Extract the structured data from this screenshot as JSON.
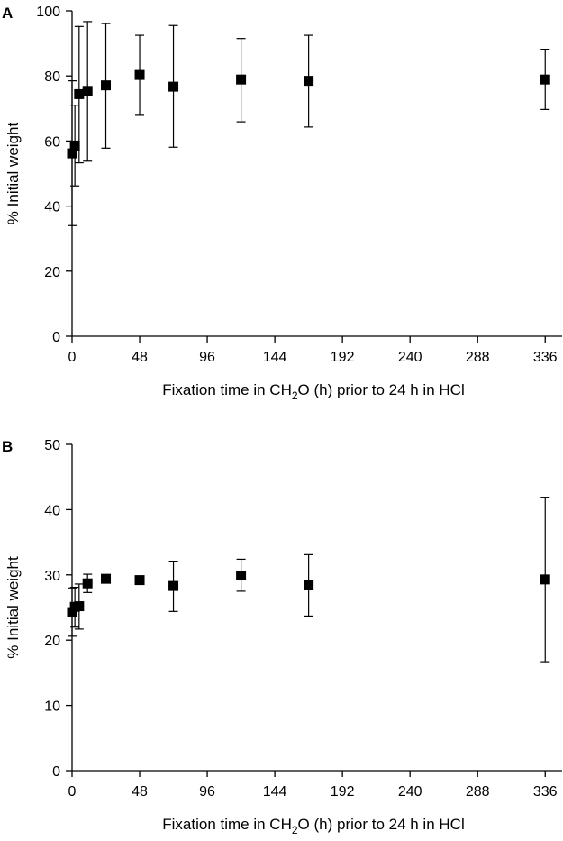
{
  "chart_data": [
    {
      "type": "scatter",
      "panel": "A",
      "xlabel_parts": [
        "Fixation time in CH",
        "2",
        "O (h) prior to 24 h in HCl"
      ],
      "ylabel": "% Initial weight",
      "xlim": [
        0,
        348
      ],
      "ylim": [
        0,
        100
      ],
      "xticks": [
        0,
        48,
        96,
        144,
        192,
        240,
        288,
        336
      ],
      "yticks": [
        0,
        20,
        40,
        60,
        80,
        100
      ],
      "grid": false,
      "series": [
        {
          "points": [
            {
              "x": 0,
              "y": 56.2,
              "lo": 34,
              "hi": 78.5
            },
            {
              "x": 2,
              "y": 58.6,
              "lo": 46.2,
              "hi": 71
            },
            {
              "x": 5,
              "y": 74.4,
              "lo": 53.3,
              "hi": 95.2
            },
            {
              "x": 11,
              "y": 75.4,
              "lo": 53.8,
              "hi": 96.7
            },
            {
              "x": 24,
              "y": 77.1,
              "lo": 57.8,
              "hi": 96.1
            },
            {
              "x": 48,
              "y": 80.3,
              "lo": 67.9,
              "hi": 92.5
            },
            {
              "x": 72,
              "y": 76.7,
              "lo": 58.1,
              "hi": 95.5
            },
            {
              "x": 120,
              "y": 78.9,
              "lo": 65.9,
              "hi": 91.5
            },
            {
              "x": 168,
              "y": 78.5,
              "lo": 64.3,
              "hi": 92.5
            },
            {
              "x": 336,
              "y": 78.9,
              "lo": 69.7,
              "hi": 88.2
            }
          ]
        }
      ]
    },
    {
      "type": "scatter",
      "panel": "B",
      "xlabel_parts": [
        "Fixation time in CH",
        "2",
        "O (h) prior to 24 h in HCl"
      ],
      "ylabel": "% Initial weight",
      "xlim": [
        0,
        348
      ],
      "ylim": [
        0,
        50
      ],
      "xticks": [
        0,
        48,
        96,
        144,
        192,
        240,
        288,
        336
      ],
      "yticks": [
        0,
        10,
        20,
        30,
        40,
        50
      ],
      "grid": false,
      "series": [
        {
          "points": [
            {
              "x": 0,
              "y": 24.3,
              "lo": 20.6,
              "hi": 28.0
            },
            {
              "x": 2,
              "y": 25.1,
              "lo": 22.0,
              "hi": 28.1
            },
            {
              "x": 5,
              "y": 25.2,
              "lo": 21.7,
              "hi": 28.6
            },
            {
              "x": 11,
              "y": 28.7,
              "lo": 27.3,
              "hi": 30.1
            },
            {
              "x": 24,
              "y": 29.4,
              "lo": 28.9,
              "hi": 29.9
            },
            {
              "x": 48,
              "y": 29.2,
              "lo": 28.8,
              "hi": 29.6
            },
            {
              "x": 72,
              "y": 28.3,
              "lo": 24.4,
              "hi": 32.1
            },
            {
              "x": 120,
              "y": 29.9,
              "lo": 27.5,
              "hi": 32.4
            },
            {
              "x": 168,
              "y": 28.4,
              "lo": 23.7,
              "hi": 33.1
            },
            {
              "x": 336,
              "y": 29.3,
              "lo": 16.7,
              "hi": 41.9
            }
          ]
        }
      ]
    }
  ]
}
